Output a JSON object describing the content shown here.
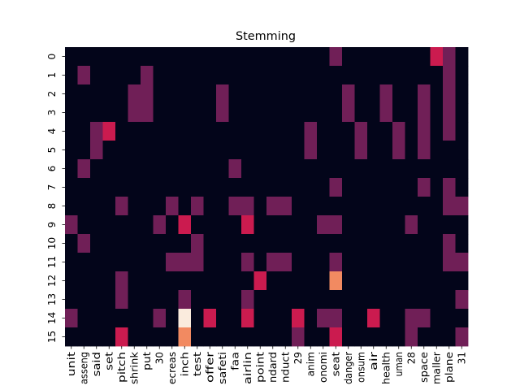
{
  "chart_data": {
    "type": "heatmap",
    "title": "Stemming",
    "xlabel": "",
    "ylabel": "",
    "colorbar": false,
    "colormap": "rocket",
    "grid": false,
    "x_tick_labels": [
      "unit",
      "asseng",
      "said",
      "set",
      "pitch",
      "shrink",
      "put",
      "30",
      "ecreas",
      "inch",
      "test",
      "offer",
      "safeti",
      "faa",
      "airlin",
      "point",
      "ndard",
      "nduct",
      "29",
      "anim",
      "onomi",
      "seat",
      "danger",
      "onsum",
      "air",
      "health",
      "uman",
      "28",
      "space",
      "maller",
      "plane",
      "31"
    ],
    "y_tick_labels": [
      "0",
      "1",
      "2",
      "3",
      "4",
      "5",
      "6",
      "7",
      "8",
      "9",
      "10",
      "11",
      "12",
      "13",
      "14",
      "15"
    ],
    "value_range": [
      0,
      5
    ],
    "values": [
      [
        0,
        0,
        0,
        0,
        0,
        0,
        0,
        0,
        0,
        0,
        0,
        0,
        0,
        0,
        0,
        0,
        0,
        0,
        0,
        0,
        0,
        1,
        0,
        0,
        0,
        0,
        0,
        0,
        0,
        3,
        1,
        0
      ],
      [
        0,
        1,
        0,
        0,
        0,
        0,
        1,
        0,
        0,
        0,
        0,
        0,
        0,
        0,
        0,
        0,
        0,
        0,
        0,
        0,
        0,
        0,
        0,
        0,
        0,
        0,
        0,
        0,
        0,
        0,
        1,
        0
      ],
      [
        0,
        0,
        0,
        0,
        0,
        1,
        1,
        0,
        0,
        0,
        0,
        0,
        1,
        0,
        0,
        0,
        0,
        0,
        0,
        0,
        0,
        0,
        1,
        0,
        0,
        1,
        0,
        0,
        1,
        0,
        1,
        0
      ],
      [
        0,
        0,
        0,
        0,
        0,
        1,
        1,
        0,
        0,
        0,
        0,
        0,
        1,
        0,
        0,
        0,
        0,
        0,
        0,
        0,
        0,
        0,
        1,
        0,
        0,
        1,
        0,
        0,
        1,
        0,
        1,
        0
      ],
      [
        0,
        0,
        1,
        3,
        0,
        0,
        0,
        0,
        0,
        0,
        0,
        0,
        0,
        0,
        0,
        0,
        0,
        0,
        0,
        1,
        0,
        0,
        0,
        1,
        0,
        0,
        1,
        0,
        1,
        0,
        1,
        0
      ],
      [
        0,
        0,
        1,
        0,
        0,
        0,
        0,
        0,
        0,
        0,
        0,
        0,
        0,
        0,
        0,
        0,
        0,
        0,
        0,
        1,
        0,
        0,
        0,
        1,
        0,
        0,
        1,
        0,
        1,
        0,
        0,
        0
      ],
      [
        0,
        1,
        0,
        0,
        0,
        0,
        0,
        0,
        0,
        0,
        0,
        0,
        0,
        1,
        0,
        0,
        0,
        0,
        0,
        0,
        0,
        0,
        0,
        0,
        0,
        0,
        0,
        0,
        0,
        0,
        0,
        0
      ],
      [
        0,
        0,
        0,
        0,
        0,
        0,
        0,
        0,
        0,
        0,
        0,
        0,
        0,
        0,
        0,
        0,
        0,
        0,
        0,
        0,
        0,
        1,
        0,
        0,
        0,
        0,
        0,
        0,
        1,
        0,
        1,
        0
      ],
      [
        0,
        0,
        0,
        0,
        1,
        0,
        0,
        0,
        1,
        0,
        1,
        0,
        0,
        1,
        1,
        0,
        1,
        1,
        0,
        0,
        0,
        0,
        0,
        0,
        0,
        0,
        0,
        0,
        0,
        0,
        1,
        1
      ],
      [
        1,
        0,
        0,
        0,
        0,
        0,
        0,
        1,
        0,
        3,
        0,
        0,
        0,
        0,
        3,
        0,
        0,
        0,
        0,
        0,
        1,
        1,
        0,
        0,
        0,
        0,
        0,
        1,
        0,
        0,
        0,
        0
      ],
      [
        0,
        1,
        0,
        0,
        0,
        0,
        0,
        0,
        0,
        0,
        1,
        0,
        0,
        0,
        0,
        0,
        0,
        0,
        0,
        0,
        0,
        0,
        0,
        0,
        0,
        0,
        0,
        0,
        0,
        0,
        1,
        0
      ],
      [
        0,
        0,
        0,
        0,
        0,
        0,
        0,
        0,
        1,
        1,
        1,
        0,
        0,
        0,
        1,
        0,
        1,
        1,
        0,
        0,
        0,
        1,
        0,
        0,
        0,
        0,
        0,
        0,
        0,
        0,
        1,
        1
      ],
      [
        0,
        0,
        0,
        0,
        1,
        0,
        0,
        0,
        0,
        0,
        0,
        0,
        0,
        0,
        0,
        3,
        0,
        0,
        0,
        0,
        0,
        4,
        0,
        0,
        0,
        0,
        0,
        0,
        0,
        0,
        0,
        0
      ],
      [
        0,
        0,
        0,
        0,
        1,
        0,
        0,
        0,
        0,
        1,
        0,
        0,
        0,
        0,
        1,
        0,
        0,
        0,
        0,
        0,
        0,
        0,
        0,
        0,
        0,
        0,
        0,
        0,
        0,
        0,
        0,
        1
      ],
      [
        1,
        0,
        0,
        0,
        0,
        0,
        0,
        1,
        0,
        5,
        0,
        3,
        0,
        0,
        3,
        0,
        0,
        0,
        3,
        0,
        1,
        1,
        0,
        0,
        3,
        0,
        0,
        1,
        1,
        0,
        0,
        0
      ],
      [
        0,
        0,
        0,
        0,
        3,
        0,
        0,
        0,
        0,
        4,
        0,
        0,
        0,
        0,
        0,
        0,
        0,
        0,
        1,
        0,
        0,
        3,
        0,
        0,
        0,
        0,
        0,
        1,
        0,
        0,
        0,
        1
      ]
    ]
  }
}
